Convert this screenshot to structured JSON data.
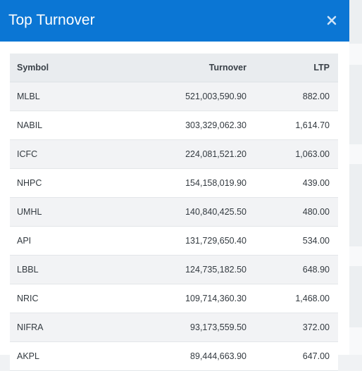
{
  "modal": {
    "title": "Top Turnover"
  },
  "table": {
    "headers": {
      "symbol": "Symbol",
      "turnover": "Turnover",
      "ltp": "LTP"
    },
    "rows": [
      {
        "symbol": "MLBL",
        "turnover": "521,003,590.90",
        "ltp": "882.00"
      },
      {
        "symbol": "NABIL",
        "turnover": "303,329,062.30",
        "ltp": "1,614.70"
      },
      {
        "symbol": "ICFC",
        "turnover": "224,081,521.20",
        "ltp": "1,063.00"
      },
      {
        "symbol": "NHPC",
        "turnover": "154,158,019.90",
        "ltp": "439.00"
      },
      {
        "symbol": "UMHL",
        "turnover": "140,840,425.50",
        "ltp": "480.00"
      },
      {
        "symbol": "API",
        "turnover": "131,729,650.40",
        "ltp": "534.00"
      },
      {
        "symbol": "LBBL",
        "turnover": "124,735,182.50",
        "ltp": "648.90"
      },
      {
        "symbol": "NRIC",
        "turnover": "109,714,360.30",
        "ltp": "1,468.00"
      },
      {
        "symbol": "NIFRA",
        "turnover": "93,173,559.50",
        "ltp": "372.00"
      },
      {
        "symbol": "AKPL",
        "turnover": "89,444,663.90",
        "ltp": "647.00"
      }
    ]
  },
  "icons": {
    "close": "close-icon"
  },
  "colors": {
    "header_bg": "#0b76d4",
    "header_text": "#ffffff",
    "table_head_bg": "#e9ecef",
    "row_stripe": "#f2f3f5"
  }
}
